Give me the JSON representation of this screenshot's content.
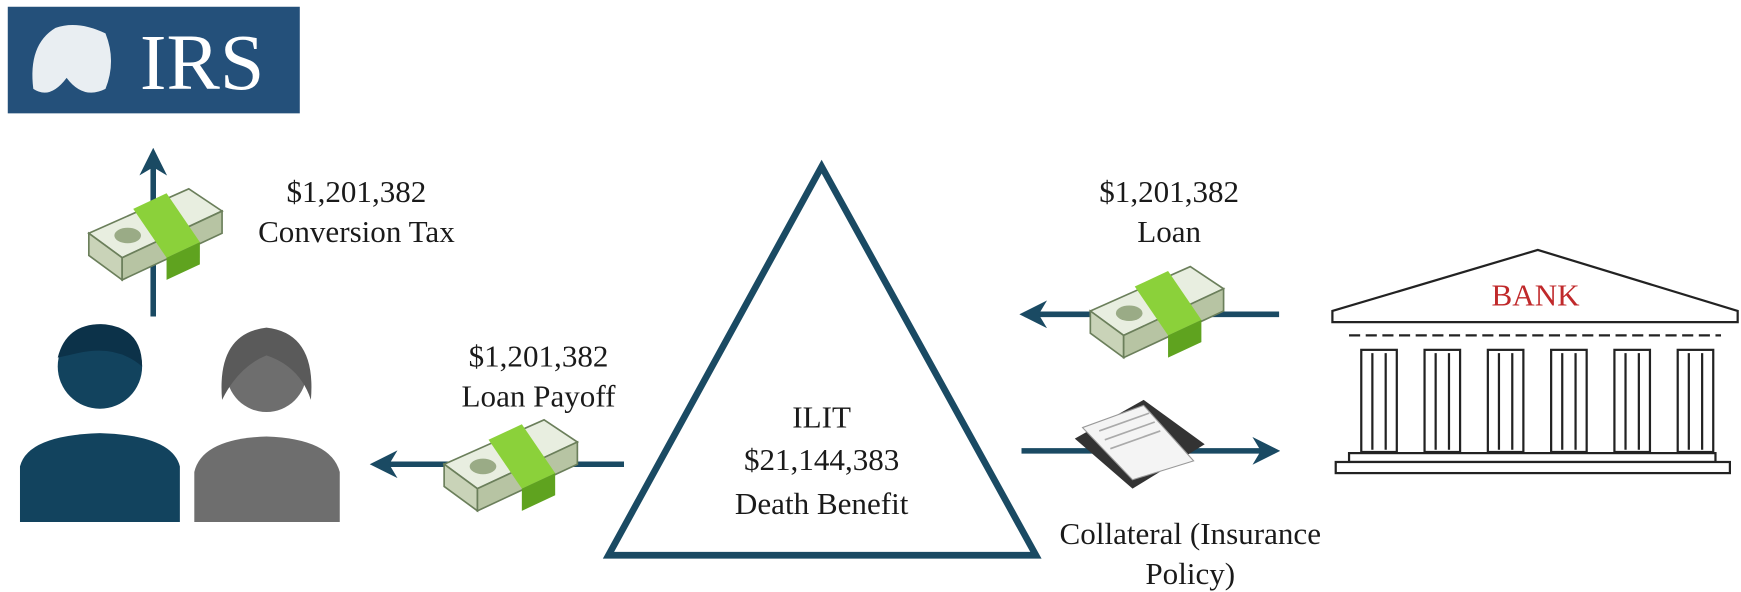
{
  "logo": {
    "text": "IRS"
  },
  "conversion_tax": {
    "amount": "$1,201,382",
    "label": "Conversion Tax"
  },
  "loan_payoff": {
    "amount": "$1,201,382",
    "label": "Loan Payoff"
  },
  "loan": {
    "amount": "$1,201,382",
    "label": "Loan"
  },
  "collateral": {
    "lines": [
      "Collateral (Insurance",
      "Policy)"
    ]
  },
  "ilit": {
    "lines": [
      "ILIT",
      "$21,144,383",
      "Death Benefit"
    ]
  },
  "bank": {
    "label": "BANK"
  }
}
